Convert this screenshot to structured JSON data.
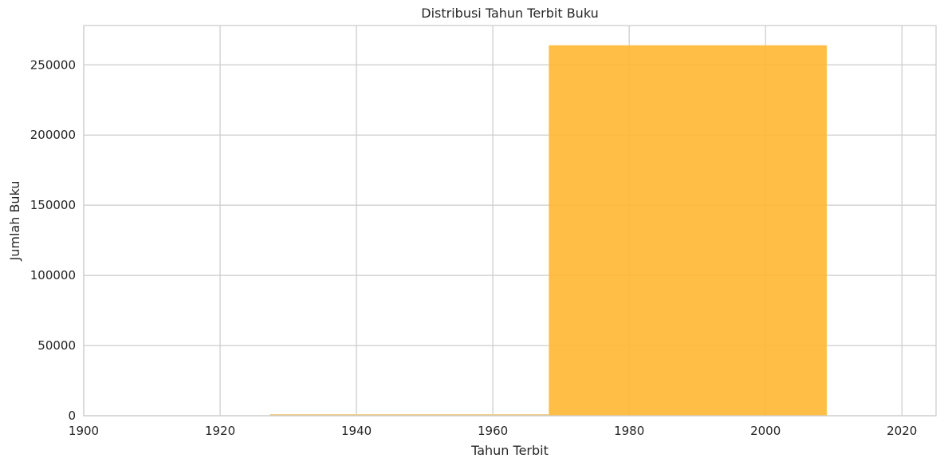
{
  "chart_data": {
    "type": "bar",
    "title": "Distribusi Tahun Terbit Buku",
    "xlabel": "Tahun Terbit",
    "ylabel": "Jumlah Buku",
    "xlim": [
      1900,
      2025
    ],
    "ylim": [
      0,
      278000
    ],
    "x_ticks": [
      1900,
      1920,
      1940,
      1960,
      1980,
      2000,
      2020
    ],
    "y_ticks": [
      0,
      50000,
      100000,
      150000,
      200000,
      250000
    ],
    "grid": true,
    "series": [
      {
        "bins": [
          {
            "x0": 1886.5,
            "x1": 1927.3,
            "value": 0,
            "color": "#E9C46A"
          },
          {
            "x0": 1927.3,
            "x1": 1968.2,
            "value": 1000,
            "color": "#E9C46A"
          },
          {
            "x0": 1968.2,
            "x1": 2009.0,
            "value": 264000,
            "color": "#FFB732"
          }
        ]
      }
    ],
    "colors": {
      "bar": "#FFB732",
      "bar_low": "#E9C46A",
      "grid": "#CCCCCC",
      "text": "#262626"
    }
  }
}
